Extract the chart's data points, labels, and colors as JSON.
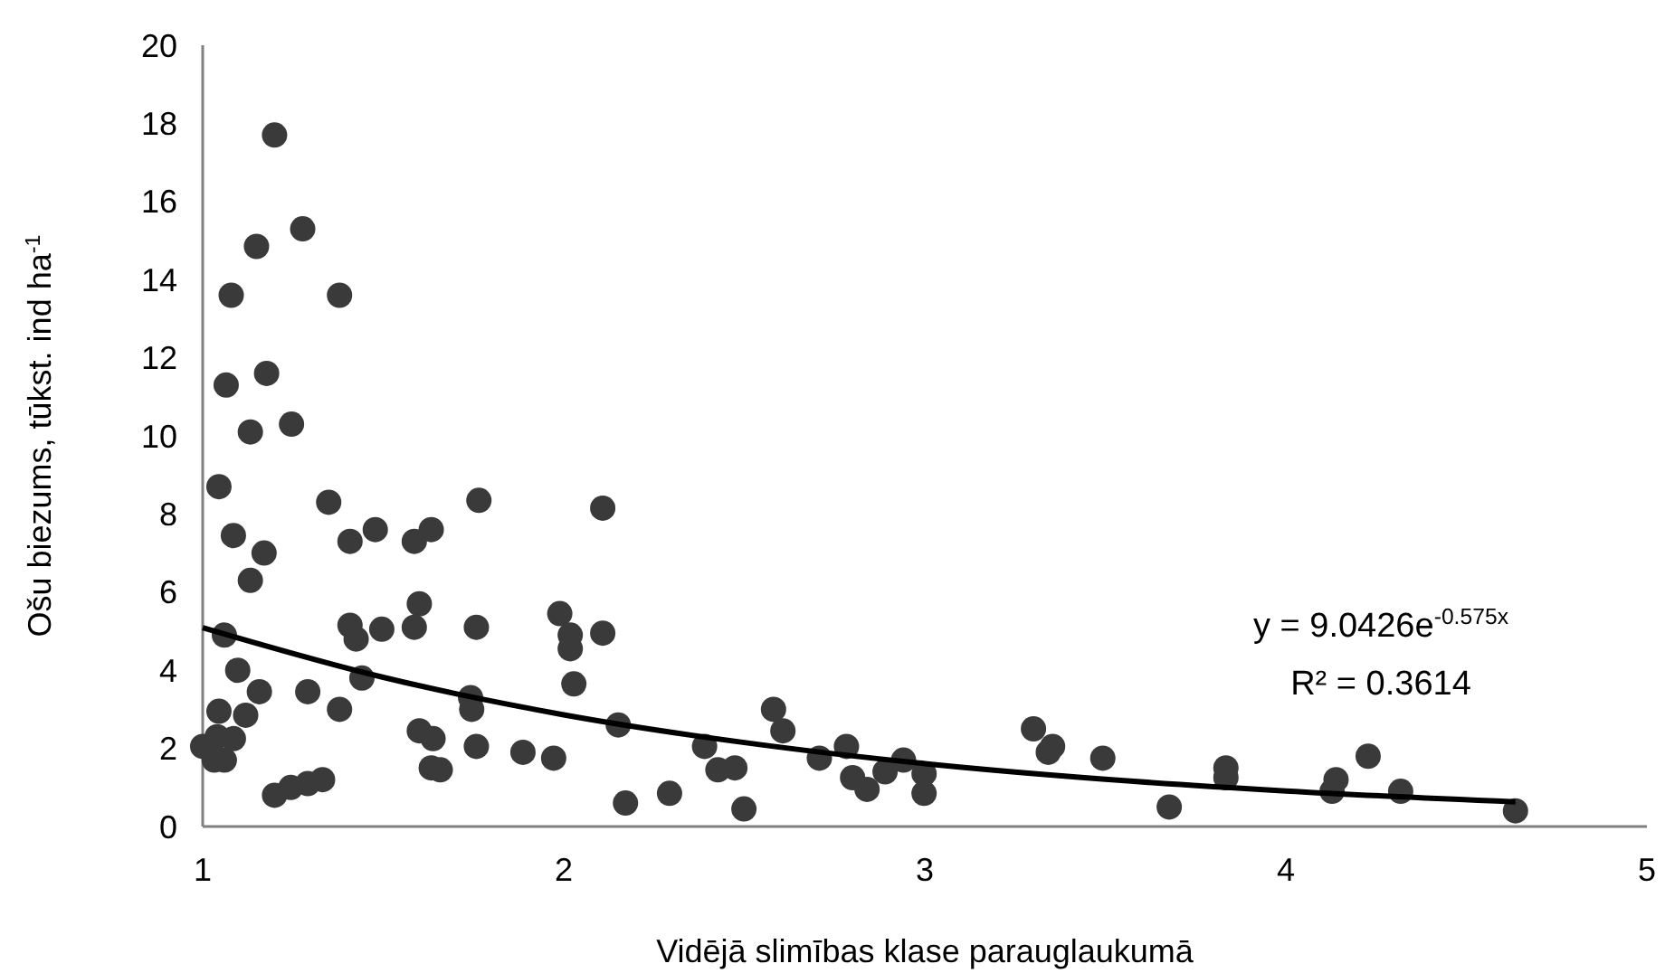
{
  "chart_data": {
    "type": "scatter",
    "xlabel": "Vidējā slimības klase parauglaukumā",
    "ylabel": "Ošu biezums, tūkst. ind ha$^{-1}$",
    "xlim": [
      1,
      5
    ],
    "xticks": [
      1,
      2,
      3,
      4,
      5
    ],
    "ylim": [
      0,
      20
    ],
    "yticks": [
      0,
      2,
      4,
      6,
      8,
      10,
      12,
      14,
      16,
      18,
      20
    ],
    "grid": false,
    "marker": "circle",
    "series": [
      {
        "type": "scatter",
        "color": "#3a3a3a",
        "x": [
          1.199,
          1.277,
          1.149,
          1.079,
          1.379,
          1.177,
          1.065,
          1.246,
          1.132,
          1.045,
          1.349,
          1.765,
          2.108,
          1.085,
          1.408,
          1.478,
          1.586,
          1.633,
          1.17,
          1.132,
          1.6,
          1.06,
          1.408,
          1.425,
          1.496,
          1.586,
          1.758,
          1.989,
          2.018,
          2.018,
          2.108,
          2.028,
          1.097,
          1.157,
          1.291,
          1.441,
          1.379,
          1.045,
          1.119,
          1.742,
          1.745,
          1.0,
          1.04,
          1.085,
          1.032,
          1.06,
          1.6,
          1.638,
          1.758,
          1.887,
          1.972,
          2.151,
          1.633,
          1.658,
          1.199,
          1.244,
          1.291,
          1.332,
          2.171,
          2.293,
          2.581,
          2.607,
          2.39,
          2.427,
          2.474,
          2.499,
          2.708,
          2.783,
          2.8,
          2.84,
          2.89,
          2.941,
          2.998,
          2.998,
          3.301,
          3.342,
          3.354,
          3.493,
          3.677,
          3.834,
          3.834,
          4.139,
          4.128,
          4.228,
          4.318,
          4.636
        ],
        "values": [
          17.7,
          15.3,
          14.85,
          13.6,
          13.6,
          11.6,
          11.3,
          10.3,
          10.1,
          8.7,
          8.3,
          8.35,
          8.15,
          7.45,
          7.3,
          7.6,
          7.3,
          7.6,
          7.0,
          6.3,
          5.7,
          4.9,
          5.15,
          4.8,
          5.05,
          5.1,
          5.1,
          5.45,
          4.9,
          4.55,
          4.95,
          3.65,
          4.0,
          3.45,
          3.45,
          3.8,
          3.0,
          2.95,
          2.85,
          3.3,
          3.0,
          2.05,
          2.3,
          2.25,
          1.7,
          1.7,
          2.45,
          2.25,
          2.05,
          1.9,
          1.75,
          2.6,
          1.5,
          1.45,
          0.8,
          1.0,
          1.1,
          1.2,
          0.6,
          0.85,
          3.0,
          2.45,
          2.05,
          1.45,
          1.5,
          0.45,
          1.75,
          2.05,
          1.25,
          0.95,
          1.4,
          1.7,
          1.35,
          0.85,
          2.5,
          1.9,
          2.05,
          1.75,
          0.5,
          1.5,
          1.25,
          1.2,
          0.9,
          1.8,
          0.9,
          0.4
        ]
      },
      {
        "type": "line",
        "color": "#000000",
        "marker": "none",
        "line_style": "solid",
        "x": [
          1,
          1.5,
          2,
          2.5,
          3,
          3.5,
          4,
          4.636
        ],
        "values": [
          5.09,
          3.82,
          2.86,
          2.15,
          1.61,
          1.21,
          0.91,
          0.63
        ]
      }
    ],
    "annotations": [
      "y = 9.0426e$^{-0.575x}$",
      "R² = 0.3614"
    ]
  }
}
